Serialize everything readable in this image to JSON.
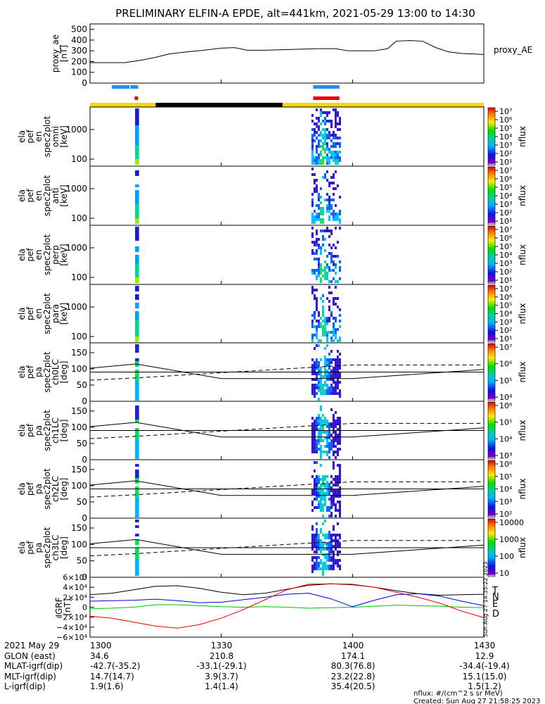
{
  "title": "PRELIMINARY ELFIN-A EPDE, alt=441km, 2021-05-29 13:00 to 14:30",
  "colors": {
    "blue": "#1e90ff",
    "red": "#e8000b",
    "yellow": "#ffd700",
    "black": "#000000",
    "green": "#00c000"
  },
  "panels": [
    {
      "id": "proxy",
      "ylabel": [
        "proxy_ae",
        "[nT]"
      ],
      "right_label": "proxy_AE",
      "yticks": [
        "500",
        "400",
        "300",
        "200",
        "100",
        "0"
      ]
    },
    {
      "id": "en-omni",
      "ylabel": [
        "ela",
        "pef",
        "en",
        "spec2plot",
        "omni",
        "[keV]"
      ],
      "yticks": [
        "1000",
        "100"
      ],
      "cb_ticks": [
        "10⁷",
        "10⁶",
        "10⁵",
        "10⁴",
        "10³",
        "10²",
        "10¹"
      ],
      "cb_label": "nflux"
    },
    {
      "id": "en-anti",
      "ylabel": [
        "ela",
        "pef",
        "en",
        "spec2plot",
        "anti",
        "[keV]"
      ],
      "yticks": [
        "1000",
        "100"
      ],
      "cb_ticks": [
        "10⁷",
        "10⁶",
        "10⁵",
        "10⁴",
        "10³",
        "10²",
        "10¹"
      ],
      "cb_label": "nflux"
    },
    {
      "id": "en-perp",
      "ylabel": [
        "ela",
        "pef",
        "en",
        "spec2plot",
        "perp",
        "[keV]"
      ],
      "yticks": [
        "1000",
        "100"
      ],
      "cb_ticks": [
        "10⁷",
        "10⁶",
        "10⁵",
        "10⁴",
        "10³",
        "10²",
        "10¹"
      ],
      "cb_label": "nflux"
    },
    {
      "id": "en-para",
      "ylabel": [
        "ela",
        "pef",
        "en",
        "spec2plot",
        "para",
        "[keV]"
      ],
      "yticks": [
        "1000",
        "100"
      ],
      "cb_ticks": [
        "10⁷",
        "10⁶",
        "10⁵",
        "10⁴",
        "10³",
        "10²",
        "10¹"
      ],
      "cb_label": "nflux"
    },
    {
      "id": "pa-ch0",
      "ylabel": [
        "ela",
        "pef",
        "pa",
        "spec2plot",
        "ch0LC",
        "[deg]"
      ],
      "yticks": [
        "150",
        "100",
        "50",
        "0"
      ],
      "cb_ticks": [
        "10⁷",
        "10⁶",
        "10⁵",
        "10⁴"
      ],
      "cb_label": "nflux"
    },
    {
      "id": "pa-ch1",
      "ylabel": [
        "ela",
        "pef",
        "pa",
        "spec2plot",
        "ch1LC",
        "[deg]"
      ],
      "yticks": [
        "150",
        "100",
        "50",
        "0"
      ],
      "cb_ticks": [
        "10⁶",
        "10⁵",
        "10⁴",
        "10³"
      ],
      "cb_label": "nflux"
    },
    {
      "id": "pa-ch2",
      "ylabel": [
        "ela",
        "pef",
        "pa",
        "spec2plot",
        "ch2LC",
        "[deg]"
      ],
      "yticks": [
        "150",
        "100",
        "50",
        "0"
      ],
      "cb_ticks": [
        "10⁶",
        "10⁵",
        "10⁴",
        "10³",
        "10²"
      ],
      "cb_label": "nflux"
    },
    {
      "id": "pa-ch3",
      "ylabel": [
        "ela",
        "pef",
        "pa",
        "spec2plot",
        "ch3LC",
        "[deg]"
      ],
      "yticks": [
        "150",
        "100",
        "50",
        "0"
      ],
      "cb_ticks": [
        "10000",
        "1000",
        "100",
        "10"
      ],
      "cb_label": "nflux"
    },
    {
      "id": "igrf",
      "ylabel": [
        "IGRF",
        "[nT]"
      ],
      "yticks": [
        "6×10⁴",
        "4×10⁴",
        "2×10⁴",
        "0",
        "−2×10⁴",
        "−4×10⁴",
        "−6×10⁴"
      ],
      "legend": [
        "T",
        "N",
        "E",
        "D"
      ],
      "side_note": "Sun Aug 27 14:35:22 2023"
    }
  ],
  "footer": {
    "rows": [
      {
        "label": "2021 May 29",
        "values": [
          "1300",
          "1330",
          "1400",
          "1430"
        ]
      },
      {
        "label": "GLON (east)",
        "values": [
          "34.6",
          "210.8",
          "174.1",
          "12.9"
        ]
      },
      {
        "label": "MLAT-igrf(dip)",
        "values": [
          "-42.7(-35.2)",
          "-33.1(-29.1)",
          "80.3(76.8)",
          "-34.4(-19.4)"
        ]
      },
      {
        "label": "MLT-igrf(dip)",
        "values": [
          "14.7(14.7)",
          "3.9(3.7)",
          "23.2(22.8)",
          "15.1(15.0)"
        ]
      },
      {
        "label": "L-igrf(dip)",
        "values": [
          "1.9(1.6)",
          "1.4(1.4)",
          "35.4(20.5)",
          "1.5(1.2)"
        ]
      }
    ],
    "units_note": "nflux: #/(cm^2 s sr MeV)",
    "created": "Created: Sun Aug 27 21:58:25 2023"
  },
  "chart_data": {
    "type": "line",
    "title": "PRELIMINARY ELFIN-A EPDE, alt=441km, 2021-05-29 13:00 to 14:30",
    "xlim_minutes": [
      0,
      90
    ],
    "x_ticks": [
      "1300",
      "1330",
      "1400",
      "1430"
    ],
    "proxy_ae": {
      "x": [
        0,
        4,
        8,
        12,
        15,
        18,
        22,
        26,
        30,
        33,
        36,
        40,
        44,
        48,
        52,
        56,
        59,
        62,
        65,
        68,
        70,
        73,
        76,
        79,
        82,
        85,
        88,
        90
      ],
      "y": [
        190,
        190,
        190,
        215,
        240,
        270,
        290,
        305,
        325,
        330,
        305,
        305,
        310,
        315,
        320,
        320,
        300,
        300,
        300,
        320,
        390,
        395,
        390,
        330,
        290,
        275,
        270,
        265
      ],
      "ylim": [
        0,
        550
      ]
    },
    "science_zones": {
      "blue_bars_min": [
        [
          5,
          9
        ],
        [
          9.2,
          11
        ],
        [
          51,
          57
        ]
      ],
      "red_bars_min": [
        [
          10.2,
          11
        ],
        [
          51,
          57
        ]
      ],
      "eclipse_black_min": [
        15,
        44
      ]
    },
    "loss_cone_deg": {
      "solid_x": [
        0,
        10.5,
        30,
        60,
        90
      ],
      "solid_y": [
        102,
        115,
        70,
        70,
        98
      ],
      "dashed_x": [
        0,
        10.5,
        30,
        60,
        90
      ],
      "dashed_y": [
        65,
        72,
        88,
        112,
        112
      ],
      "level_line_y": 90
    },
    "igrf_nT": {
      "x_min": [
        0,
        5,
        10,
        15,
        20,
        25,
        30,
        35,
        40,
        45,
        50,
        55,
        60,
        65,
        70,
        75,
        80,
        85,
        90
      ],
      "T": [
        25000,
        28000,
        35000,
        42000,
        43000,
        38000,
        30000,
        25000,
        28000,
        36000,
        44000,
        47000,
        45000,
        40000,
        33000,
        27000,
        24000,
        25000,
        26000
      ],
      "N": [
        12000,
        13000,
        14000,
        16000,
        13000,
        9000,
        10000,
        15000,
        20000,
        26000,
        28000,
        17000,
        1000,
        14000,
        25000,
        27000,
        22000,
        12000,
        3000
      ],
      "E": [
        -3000,
        -2000,
        0,
        5000,
        5000,
        3000,
        1000,
        0,
        1000,
        0,
        -2000,
        -1000,
        0,
        2000,
        4000,
        3000,
        2000,
        0,
        -1000
      ],
      "D": [
        -18000,
        -22000,
        -30000,
        -38000,
        -42000,
        -35000,
        -22000,
        -5000,
        15000,
        35000,
        46000,
        47000,
        46000,
        40000,
        30000,
        20000,
        8000,
        -8000,
        -21000
      ],
      "ylim": [
        -60000,
        60000
      ]
    },
    "spectrogram_events_min": [
      [
        10.3,
        11.2
      ],
      [
        50.6,
        57.2
      ]
    ]
  }
}
